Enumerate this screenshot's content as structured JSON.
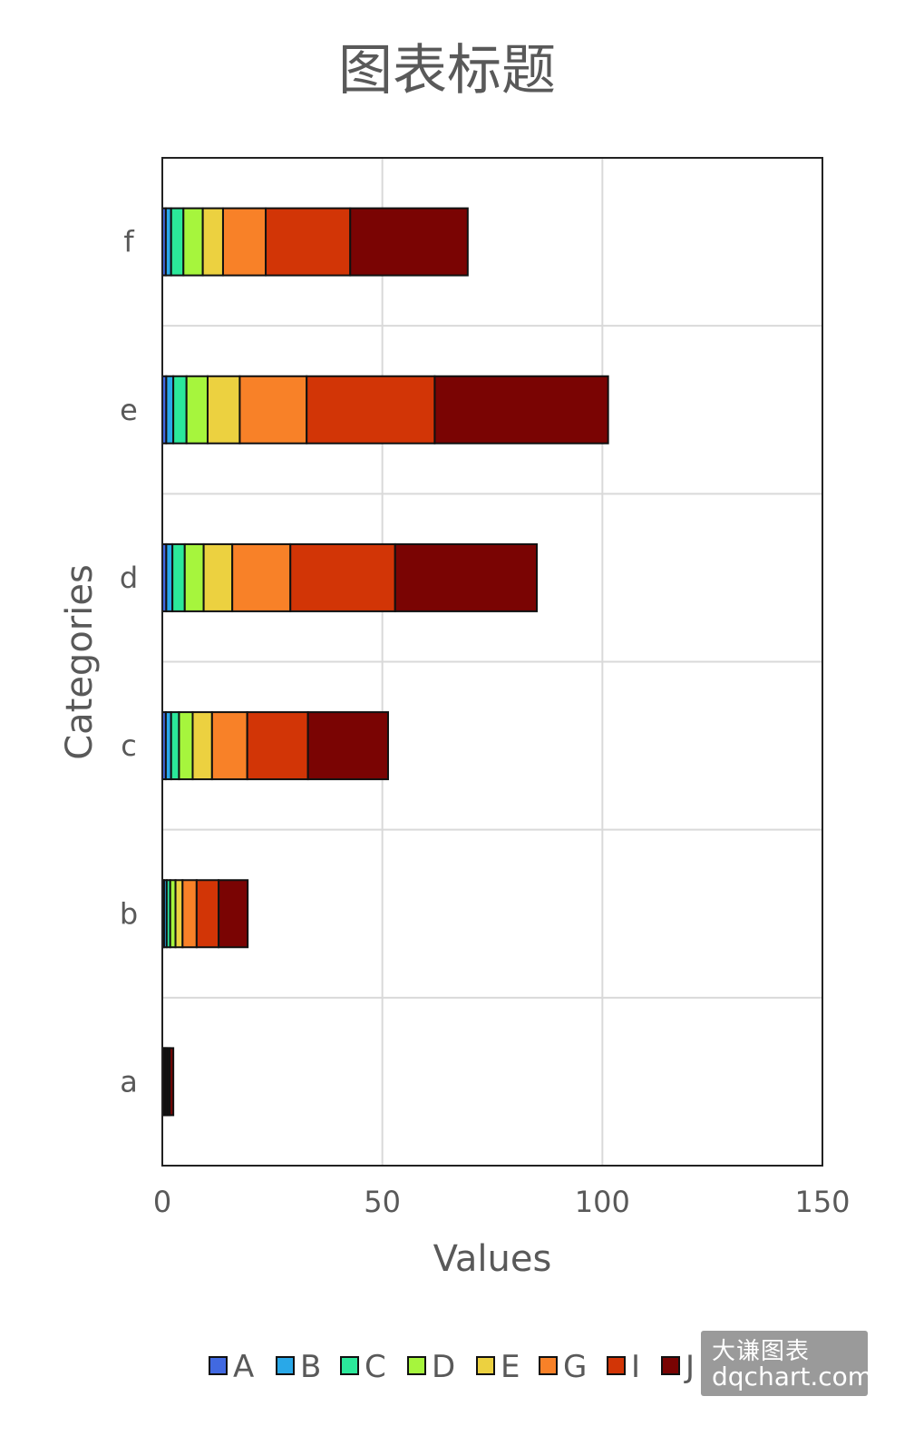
{
  "chart_data": {
    "type": "bar",
    "orientation": "horizontal",
    "stacked": true,
    "title": "图表标题",
    "xlabel": "Values",
    "ylabel": "Categories",
    "xlim": [
      0,
      150
    ],
    "xticks": [
      0,
      50,
      100,
      150
    ],
    "categories": [
      "a",
      "b",
      "c",
      "d",
      "e",
      "f"
    ],
    "grid": true,
    "legend_position": "bottom",
    "series": [
      {
        "name": "A",
        "color": "#4169e1",
        "values": [
          0.2,
          0.4,
          0.8,
          0.9,
          0.9,
          0.8
        ]
      },
      {
        "name": "B",
        "color": "#29a8e8",
        "values": [
          0.2,
          0.6,
          1.2,
          1.4,
          1.6,
          1.2
        ]
      },
      {
        "name": "C",
        "color": "#2be89a",
        "values": [
          0.2,
          0.8,
          1.8,
          2.8,
          3.0,
          2.8
        ]
      },
      {
        "name": "D",
        "color": "#a6f53d",
        "values": [
          0.2,
          1.2,
          3.1,
          4.3,
          4.8,
          4.4
        ]
      },
      {
        "name": "E",
        "color": "#ecd140",
        "values": [
          0.2,
          1.6,
          4.4,
          6.5,
          7.3,
          4.6
        ]
      },
      {
        "name": "G",
        "color": "#f88128",
        "values": [
          0.3,
          3.2,
          8.0,
          13.2,
          15.2,
          9.7
        ]
      },
      {
        "name": "I",
        "color": "#d23506",
        "values": [
          0.4,
          5.0,
          13.8,
          23.8,
          29.1,
          19.2
        ]
      },
      {
        "name": "J",
        "color": "#7a0403",
        "values": [
          0.8,
          6.6,
          18.2,
          32.2,
          39.4,
          26.7
        ]
      }
    ]
  },
  "watermark": {
    "line1": "大谦图表",
    "line2": "dqchart.com"
  }
}
